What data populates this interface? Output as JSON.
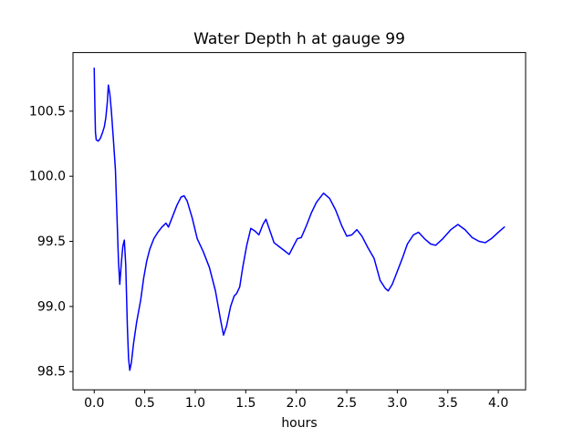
{
  "chart_data": {
    "type": "line",
    "title": "Water Depth h at gauge 99",
    "xlabel": "hours",
    "ylabel": "",
    "grid": false,
    "legend": "none",
    "line_color": "#0000ff",
    "axes_color": "#000000",
    "background_color": "#ffffff",
    "xlim": [
      -0.21,
      4.27
    ],
    "ylim": [
      98.36,
      100.95
    ],
    "xticks": {
      "values": [
        0.0,
        0.5,
        1.0,
        1.5,
        2.0,
        2.5,
        3.0,
        3.5,
        4.0
      ],
      "labels": [
        "0.0",
        "0.5",
        "1.0",
        "1.5",
        "2.0",
        "2.5",
        "3.0",
        "3.5",
        "4.0"
      ]
    },
    "yticks": {
      "values": [
        98.5,
        99.0,
        99.5,
        100.0,
        100.5
      ],
      "labels": [
        "98.5",
        "99.0",
        "99.5",
        "100.0",
        "100.5"
      ]
    },
    "series": [
      {
        "name": "water-depth-h",
        "x": [
          0.0,
          0.005,
          0.012,
          0.02,
          0.04,
          0.06,
          0.08,
          0.1,
          0.115,
          0.13,
          0.14,
          0.155,
          0.17,
          0.19,
          0.21,
          0.225,
          0.24,
          0.253,
          0.268,
          0.283,
          0.298,
          0.312,
          0.328,
          0.34,
          0.352,
          0.368,
          0.39,
          0.42,
          0.46,
          0.49,
          0.52,
          0.55,
          0.59,
          0.63,
          0.67,
          0.71,
          0.735,
          0.77,
          0.82,
          0.86,
          0.89,
          0.92,
          0.97,
          1.02,
          1.08,
          1.14,
          1.2,
          1.25,
          1.28,
          1.31,
          1.35,
          1.385,
          1.41,
          1.44,
          1.47,
          1.51,
          1.55,
          1.59,
          1.63,
          1.67,
          1.7,
          1.74,
          1.78,
          1.83,
          1.88,
          1.93,
          1.97,
          2.01,
          2.05,
          2.1,
          2.15,
          2.2,
          2.27,
          2.33,
          2.39,
          2.45,
          2.5,
          2.55,
          2.6,
          2.65,
          2.71,
          2.77,
          2.83,
          2.88,
          2.91,
          2.95,
          3.0,
          3.05,
          3.1,
          3.16,
          3.21,
          3.27,
          3.33,
          3.38,
          3.45,
          3.53,
          3.6,
          3.67,
          3.74,
          3.81,
          3.87,
          3.93,
          4.0,
          4.06
        ],
        "y": [
          100.83,
          100.6,
          100.34,
          100.28,
          100.27,
          100.29,
          100.33,
          100.38,
          100.45,
          100.57,
          100.7,
          100.63,
          100.5,
          100.28,
          100.05,
          99.7,
          99.35,
          99.17,
          99.33,
          99.46,
          99.51,
          99.32,
          98.85,
          98.6,
          98.51,
          98.57,
          98.72,
          98.88,
          99.05,
          99.22,
          99.35,
          99.44,
          99.52,
          99.57,
          99.61,
          99.64,
          99.61,
          99.68,
          99.78,
          99.84,
          99.85,
          99.81,
          99.68,
          99.52,
          99.42,
          99.3,
          99.12,
          98.9,
          98.78,
          98.85,
          99.0,
          99.08,
          99.1,
          99.15,
          99.3,
          99.47,
          99.6,
          99.58,
          99.55,
          99.63,
          99.67,
          99.58,
          99.49,
          99.46,
          99.43,
          99.4,
          99.46,
          99.52,
          99.53,
          99.62,
          99.72,
          99.8,
          99.87,
          99.83,
          99.74,
          99.62,
          99.54,
          99.55,
          99.59,
          99.54,
          99.45,
          99.37,
          99.2,
          99.14,
          99.12,
          99.17,
          99.27,
          99.37,
          99.48,
          99.55,
          99.57,
          99.52,
          99.48,
          99.47,
          99.52,
          99.59,
          99.63,
          99.59,
          99.53,
          99.5,
          99.49,
          99.52,
          99.57,
          99.61
        ]
      }
    ]
  }
}
